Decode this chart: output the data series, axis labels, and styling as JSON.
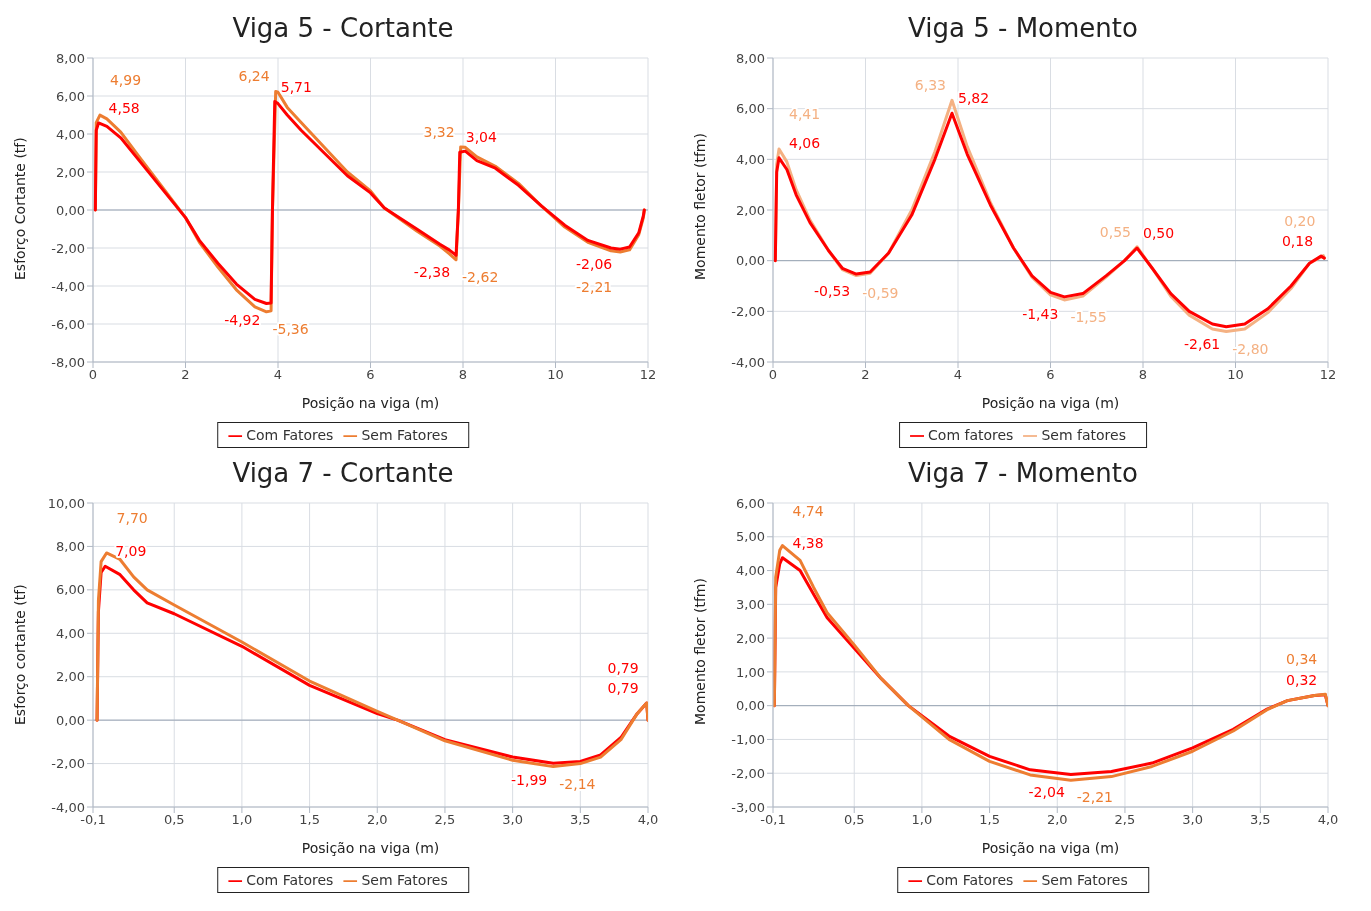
{
  "chart_data": [
    {
      "type": "line",
      "title": "Viga 5 - Cortante",
      "xlabel": "Posição na viga (m)",
      "ylabel": "Esforço Cortante (tf)",
      "marker": "none",
      "grid": true,
      "legend": "bottom",
      "xlim": [
        0,
        12
      ],
      "xticks": [
        0,
        2,
        4,
        6,
        8,
        10,
        12
      ],
      "ylim": [
        -8,
        8
      ],
      "yticks": [
        {
          "value": -8,
          "label": "-8,00"
        },
        {
          "value": -6,
          "label": "-6,00"
        },
        {
          "value": -4,
          "label": "-4,00"
        },
        {
          "value": -2,
          "label": "-2,00"
        },
        {
          "value": 0,
          "label": "0,00"
        },
        {
          "value": 2,
          "label": "2,00"
        },
        {
          "value": 4,
          "label": "4,00"
        },
        {
          "value": 6,
          "label": "6,00"
        },
        {
          "value": 8,
          "label": "8,00"
        }
      ],
      "series": [
        {
          "name": "Sem Fatores",
          "color": "#ed7d31",
          "x": [
            0.05,
            0.07,
            0.15,
            0.3,
            0.6,
            1,
            1.5,
            2,
            2.3,
            2.7,
            3.1,
            3.5,
            3.75,
            3.85,
            3.88,
            3.95,
            4.0,
            4.2,
            4.5,
            5,
            5.5,
            6,
            6.3,
            7,
            7.5,
            7.7,
            7.85,
            7.9,
            7.95,
            8.05,
            8.3,
            8.7,
            9.2,
            9.7,
            10.2,
            10.7,
            11.2,
            11.4,
            11.6,
            11.8,
            11.9,
            11.92
          ],
          "values": [
            0,
            4.6,
            4.99,
            4.8,
            4.1,
            2.8,
            1.2,
            -0.4,
            -1.7,
            -3.0,
            -4.2,
            -5.1,
            -5.36,
            -5.3,
            0,
            6.24,
            6.2,
            5.4,
            4.6,
            3.3,
            2.0,
            1.0,
            0.1,
            -1.1,
            -1.9,
            -2.3,
            -2.62,
            0,
            3.32,
            3.3,
            2.8,
            2.3,
            1.4,
            0.2,
            -0.9,
            -1.7,
            -2.15,
            -2.21,
            -2.1,
            -1.3,
            -0.4,
            0
          ]
        },
        {
          "name": "Com Fatores",
          "color": "#ff0000",
          "x": [
            0.05,
            0.07,
            0.12,
            0.3,
            0.6,
            1,
            1.5,
            2,
            2.3,
            2.7,
            3.1,
            3.5,
            3.75,
            3.85,
            3.88,
            3.93,
            4.0,
            4.2,
            4.5,
            5,
            5.5,
            6,
            6.3,
            7,
            7.5,
            7.7,
            7.85,
            7.9,
            7.93,
            8.05,
            8.3,
            8.7,
            9.2,
            9.7,
            10.2,
            10.7,
            11.2,
            11.4,
            11.6,
            11.8,
            11.9,
            11.92
          ],
          "values": [
            0,
            4.2,
            4.58,
            4.4,
            3.8,
            2.6,
            1.1,
            -0.4,
            -1.6,
            -2.8,
            -3.9,
            -4.7,
            -4.92,
            -4.9,
            0,
            5.71,
            5.6,
            5.0,
            4.2,
            3.0,
            1.8,
            0.9,
            0.1,
            -1.0,
            -1.8,
            -2.1,
            -2.38,
            0,
            3.04,
            3.1,
            2.6,
            2.2,
            1.3,
            0.2,
            -0.8,
            -1.6,
            -2.0,
            -2.06,
            -1.95,
            -1.2,
            -0.3,
            0
          ]
        }
      ],
      "annotations": [
        {
          "text": "4,58",
          "x": 0.12,
          "y": 4.58
        },
        {
          "text": "4,99",
          "x": 0.15,
          "y": 4.99
        },
        {
          "text": "-4,92",
          "x": 3.75,
          "y": -4.92
        },
        {
          "text": "-5,36",
          "x": 3.75,
          "y": -5.36
        },
        {
          "text": "5,71",
          "x": 3.93,
          "y": 5.71
        },
        {
          "text": "6,24",
          "x": 3.95,
          "y": 6.24
        },
        {
          "text": "-2,38",
          "x": 7.85,
          "y": -2.38
        },
        {
          "text": "-2,62",
          "x": 7.85,
          "y": -2.62
        },
        {
          "text": "3,04",
          "x": 7.93,
          "y": 3.04
        },
        {
          "text": "3,32",
          "x": 7.95,
          "y": 3.32
        },
        {
          "text": "-2,06",
          "x": 11.4,
          "y": -2.06
        },
        {
          "text": "-2,21",
          "x": 11.4,
          "y": -2.21
        }
      ]
    },
    {
      "type": "line",
      "title": "Viga 5 - Momento",
      "xlabel": "Posição na viga (m)",
      "ylabel": "Momento fletor (tfm)",
      "marker": "none",
      "grid": true,
      "legend": "bottom",
      "xlim": [
        0,
        12
      ],
      "xticks": [
        0,
        2,
        4,
        6,
        8,
        10,
        12
      ],
      "ylim": [
        -4,
        8
      ],
      "yticks": [
        {
          "value": -4,
          "label": "-4,00"
        },
        {
          "value": -2,
          "label": "-2,00"
        },
        {
          "value": 0,
          "label": "0,00"
        },
        {
          "value": 2,
          "label": "2,00"
        },
        {
          "value": 4,
          "label": "4,00"
        },
        {
          "value": 6,
          "label": "6,00"
        },
        {
          "value": 8,
          "label": "8,00"
        }
      ],
      "series": [
        {
          "name": "Sem fatores",
          "color": "#f4b183",
          "x": [
            0.05,
            0.08,
            0.13,
            0.3,
            0.5,
            0.8,
            1.2,
            1.5,
            1.8,
            2.1,
            2.5,
            3,
            3.5,
            3.87,
            4.2,
            4.7,
            5.2,
            5.6,
            6,
            6.3,
            6.7,
            7.2,
            7.6,
            7.87,
            8.2,
            8.6,
            9,
            9.5,
            9.8,
            10.2,
            10.7,
            11.2,
            11.6,
            11.9,
            11.92
          ],
          "values": [
            0,
            3.8,
            4.41,
            3.9,
            2.8,
            1.6,
            0.4,
            -0.35,
            -0.59,
            -0.5,
            0.3,
            2.0,
            4.3,
            6.33,
            4.5,
            2.3,
            0.5,
            -0.65,
            -1.35,
            -1.55,
            -1.4,
            -0.65,
            0,
            0.55,
            -0.3,
            -1.4,
            -2.15,
            -2.7,
            -2.8,
            -2.7,
            -2.05,
            -1.1,
            -0.1,
            0.2,
            0.1
          ]
        },
        {
          "name": "Com fatores",
          "color": "#ff0000",
          "x": [
            0.05,
            0.08,
            0.13,
            0.3,
            0.5,
            0.8,
            1.2,
            1.5,
            1.8,
            2.1,
            2.5,
            3,
            3.5,
            3.87,
            4.2,
            4.7,
            5.2,
            5.6,
            6,
            6.3,
            6.7,
            7.2,
            7.6,
            7.87,
            8.2,
            8.6,
            9,
            9.5,
            9.8,
            10.2,
            10.7,
            11.2,
            11.6,
            11.85,
            11.92
          ],
          "values": [
            0,
            3.5,
            4.06,
            3.6,
            2.6,
            1.5,
            0.4,
            -0.3,
            -0.53,
            -0.45,
            0.3,
            1.8,
            4.0,
            5.82,
            4.2,
            2.2,
            0.5,
            -0.6,
            -1.25,
            -1.43,
            -1.3,
            -0.6,
            0,
            0.5,
            -0.3,
            -1.3,
            -2.0,
            -2.5,
            -2.61,
            -2.5,
            -1.9,
            -1.0,
            -0.1,
            0.18,
            0.1
          ]
        }
      ],
      "annotations": [
        {
          "text": "4,41",
          "x": 0.13,
          "y": 4.41
        },
        {
          "text": "4,06",
          "x": 0.13,
          "y": 4.06
        },
        {
          "text": "-0,53",
          "x": 1.8,
          "y": -0.53
        },
        {
          "text": "-0,59",
          "x": 1.8,
          "y": -0.59
        },
        {
          "text": "6,33",
          "x": 3.87,
          "y": 6.33
        },
        {
          "text": "5,82",
          "x": 3.87,
          "y": 5.82
        },
        {
          "text": "-1,43",
          "x": 6.3,
          "y": -1.43
        },
        {
          "text": "-1,55",
          "x": 6.3,
          "y": -1.55
        },
        {
          "text": "0,50",
          "x": 7.87,
          "y": 0.5
        },
        {
          "text": "0,55",
          "x": 7.87,
          "y": 0.55
        },
        {
          "text": "-2,61",
          "x": 9.8,
          "y": -2.61
        },
        {
          "text": "-2,80",
          "x": 9.8,
          "y": -2.8
        },
        {
          "text": "0,20",
          "x": 11.9,
          "y": 0.2
        },
        {
          "text": "0,18",
          "x": 11.85,
          "y": 0.18
        }
      ]
    },
    {
      "type": "line",
      "title": "Viga 7 - Cortante",
      "xlabel": "Posição na viga (m)",
      "ylabel": "Esforço cortante (tf)",
      "marker": "none",
      "grid": true,
      "legend": "bottom",
      "xlim": [
        -0.1,
        4.0
      ],
      "xticks": [
        {
          "value": -0.1,
          "label": "-0,1"
        },
        {
          "value": 0.5,
          "label": "0,5"
        },
        {
          "value": 1,
          "label": "1,0"
        },
        {
          "value": 1.5,
          "label": "1,5"
        },
        {
          "value": 2,
          "label": "2,0"
        },
        {
          "value": 2.5,
          "label": "2,5"
        },
        {
          "value": 3,
          "label": "3,0"
        },
        {
          "value": 3.5,
          "label": "3,5"
        },
        {
          "value": 4,
          "label": "4,0"
        }
      ],
      "ylim": [
        -4,
        10
      ],
      "yticks": [
        {
          "value": -4,
          "label": "-4,00"
        },
        {
          "value": -2,
          "label": "-2,00"
        },
        {
          "value": 0,
          "label": "0,00"
        },
        {
          "value": 2,
          "label": "2,00"
        },
        {
          "value": 4,
          "label": "4,00"
        },
        {
          "value": 6,
          "label": "6,00"
        },
        {
          "value": 8,
          "label": "8,00"
        },
        {
          "value": 10,
          "label": "10,00"
        }
      ],
      "series": [
        {
          "name": "Com Fatores",
          "color": "#ff0000",
          "x": [
            -0.07,
            -0.06,
            -0.04,
            -0.01,
            0.1,
            0.2,
            0.3,
            0.5,
            1.0,
            1.5,
            2.0,
            2.15,
            2.5,
            3.0,
            3.3,
            3.5,
            3.65,
            3.8,
            3.92,
            3.99,
            4.0
          ],
          "values": [
            0,
            5,
            6.8,
            7.09,
            6.7,
            6.0,
            5.4,
            4.9,
            3.4,
            1.6,
            0.3,
            0,
            -0.9,
            -1.7,
            -1.99,
            -1.9,
            -1.6,
            -0.8,
            0.3,
            0.79,
            0
          ]
        },
        {
          "name": "Sem Fatores",
          "color": "#ed7d31",
          "x": [
            -0.07,
            -0.06,
            -0.04,
            0.0,
            0.1,
            0.2,
            0.3,
            0.5,
            1.0,
            1.5,
            2.0,
            2.15,
            2.5,
            3.0,
            3.3,
            3.5,
            3.65,
            3.8,
            3.92,
            3.99,
            4.0
          ],
          "values": [
            0,
            5.5,
            7.3,
            7.7,
            7.4,
            6.6,
            6.0,
            5.3,
            3.6,
            1.8,
            0.4,
            0,
            -0.95,
            -1.85,
            -2.14,
            -2.0,
            -1.7,
            -0.9,
            0.3,
            0.79,
            0
          ]
        }
      ],
      "annotations": [
        {
          "text": "7,09",
          "x": -0.01,
          "y": 7.09
        },
        {
          "text": "7,70",
          "x": 0.0,
          "y": 7.7
        },
        {
          "text": "-1,99",
          "x": 3.3,
          "y": -1.99
        },
        {
          "text": "-2,14",
          "x": 3.3,
          "y": -2.14
        },
        {
          "text": "0,79",
          "x": 3.99,
          "y": 0.79
        },
        {
          "text": "0,79",
          "x": 3.99,
          "y": 0.79
        }
      ]
    },
    {
      "type": "line",
      "title": "Viga 7 - Momento",
      "xlabel": "Posição na viga (m)",
      "ylabel": "Momento fletor (tfm)",
      "marker": "none",
      "grid": true,
      "legend": "bottom",
      "xlim": [
        -0.1,
        4.0
      ],
      "xticks": [
        {
          "value": -0.1,
          "label": "-0,1"
        },
        {
          "value": 0.5,
          "label": "0,5"
        },
        {
          "value": 1,
          "label": "1,0"
        },
        {
          "value": 1.5,
          "label": "1,5"
        },
        {
          "value": 2,
          "label": "2,0"
        },
        {
          "value": 2.5,
          "label": "2,5"
        },
        {
          "value": 3,
          "label": "3,0"
        },
        {
          "value": 3.5,
          "label": "3,5"
        },
        {
          "value": 4,
          "label": "4,0"
        }
      ],
      "ylim": [
        -3,
        6
      ],
      "yticks": [
        {
          "value": -3,
          "label": "-3,00"
        },
        {
          "value": -2,
          "label": "-2,00"
        },
        {
          "value": -1,
          "label": "-1,00"
        },
        {
          "value": 0,
          "label": "0,00"
        },
        {
          "value": 1,
          "label": "1,00"
        },
        {
          "value": 2,
          "label": "2,00"
        },
        {
          "value": 3,
          "label": "3,00"
        },
        {
          "value": 4,
          "label": "4,00"
        },
        {
          "value": 5,
          "label": "5,00"
        },
        {
          "value": 6,
          "label": "6,00"
        }
      ],
      "series": [
        {
          "name": "Com Fatores",
          "color": "#ff0000",
          "x": [
            -0.09,
            -0.08,
            -0.05,
            -0.03,
            0.1,
            0.2,
            0.3,
            0.5,
            0.7,
            0.9,
            1.2,
            1.5,
            1.8,
            2.1,
            2.4,
            2.7,
            3.0,
            3.3,
            3.55,
            3.7,
            3.9,
            3.98,
            4.0
          ],
          "values": [
            0,
            3.5,
            4.2,
            4.38,
            4.0,
            3.3,
            2.6,
            1.7,
            0.8,
            0,
            -0.9,
            -1.5,
            -1.9,
            -2.04,
            -1.95,
            -1.7,
            -1.25,
            -0.7,
            -0.1,
            0.15,
            0.3,
            0.32,
            0
          ]
        },
        {
          "name": "Sem Fatores",
          "color": "#ed7d31",
          "x": [
            -0.09,
            -0.08,
            -0.05,
            -0.03,
            0.1,
            0.2,
            0.3,
            0.5,
            0.7,
            0.9,
            1.2,
            1.5,
            1.8,
            2.1,
            2.4,
            2.7,
            3.0,
            3.3,
            3.55,
            3.7,
            3.9,
            3.98,
            4.0
          ],
          "values": [
            0,
            3.8,
            4.6,
            4.74,
            4.3,
            3.5,
            2.75,
            1.8,
            0.8,
            0,
            -1.0,
            -1.65,
            -2.05,
            -2.21,
            -2.1,
            -1.8,
            -1.35,
            -0.75,
            -0.12,
            0.15,
            0.3,
            0.34,
            0
          ]
        }
      ],
      "annotations": [
        {
          "text": "4,38",
          "x": -0.03,
          "y": 4.38
        },
        {
          "text": "4,74",
          "x": -0.03,
          "y": 4.74
        },
        {
          "text": "-2,04",
          "x": 2.1,
          "y": -2.04
        },
        {
          "text": "-2,21",
          "x": 2.1,
          "y": -2.21
        },
        {
          "text": "0,34",
          "x": 3.98,
          "y": 0.34
        },
        {
          "text": "0,32",
          "x": 3.98,
          "y": 0.32
        }
      ]
    }
  ]
}
